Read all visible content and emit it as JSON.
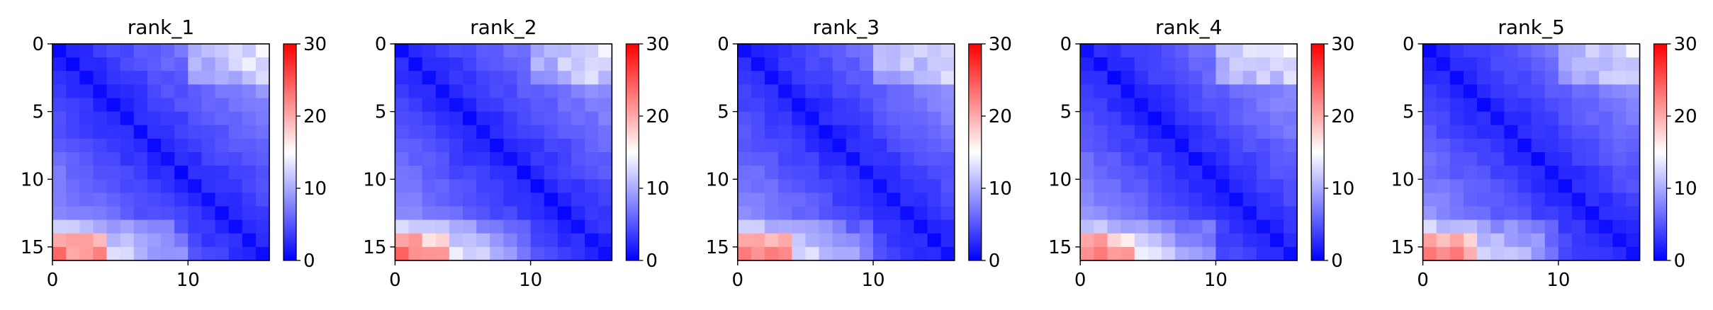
{
  "chart_data": [
    {
      "type": "heatmap",
      "title": "rank_1",
      "size": 16,
      "vmin": 0,
      "vmax": 30,
      "seed": 11,
      "xticks": [
        0,
        10
      ],
      "yticks": [
        0,
        5,
        10,
        15
      ],
      "cbar_ticks": [
        0,
        10,
        20,
        30
      ],
      "colormap": "bwr",
      "note": "pairwise matrix, near-zero diagonal, values rise toward bottom-left (max ~24)"
    },
    {
      "type": "heatmap",
      "title": "rank_2",
      "size": 16,
      "vmin": 0,
      "vmax": 30,
      "seed": 23,
      "xticks": [
        0,
        10
      ],
      "yticks": [
        0,
        5,
        10,
        15
      ],
      "cbar_ticks": [
        0,
        10,
        20,
        30
      ],
      "colormap": "bwr"
    },
    {
      "type": "heatmap",
      "title": "rank_3",
      "size": 16,
      "vmin": 0,
      "vmax": 30,
      "seed": 37,
      "xticks": [
        0,
        10
      ],
      "yticks": [
        0,
        5,
        10,
        15
      ],
      "cbar_ticks": [
        0,
        10,
        20,
        30
      ],
      "colormap": "bwr"
    },
    {
      "type": "heatmap",
      "title": "rank_4",
      "size": 16,
      "vmin": 0,
      "vmax": 30,
      "seed": 41,
      "xticks": [
        0,
        10
      ],
      "yticks": [
        0,
        5,
        10,
        15
      ],
      "cbar_ticks": [
        0,
        10,
        20,
        30
      ],
      "colormap": "bwr"
    },
    {
      "type": "heatmap",
      "title": "rank_5",
      "size": 16,
      "vmin": 0,
      "vmax": 30,
      "seed": 53,
      "xticks": [
        0,
        10
      ],
      "yticks": [
        0,
        5,
        10,
        15
      ],
      "cbar_ticks": [
        0,
        10,
        20,
        30
      ],
      "colormap": "bwr"
    }
  ]
}
